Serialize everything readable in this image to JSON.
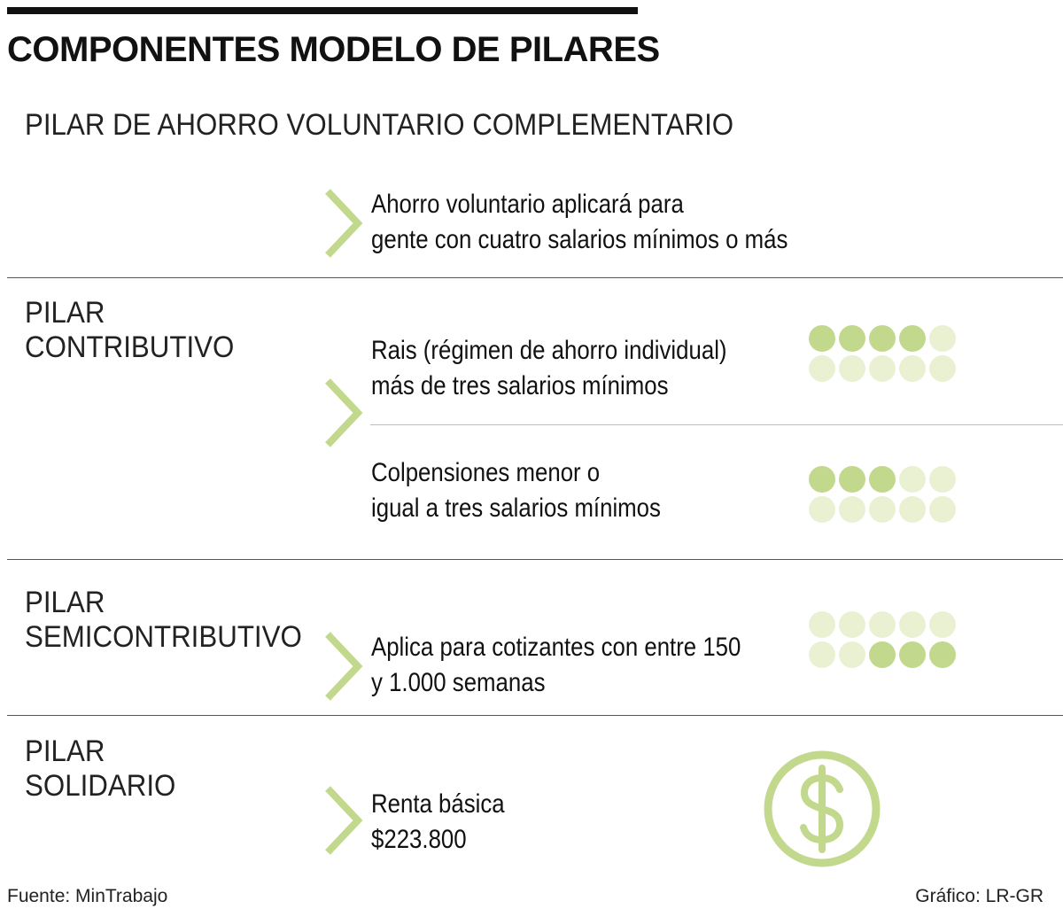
{
  "title": "COMPONENTES MODELO DE PILARES",
  "colors": {
    "accent": "#b6d17a",
    "dot_filled": "#c2d98d",
    "dot_empty": "#eaf1d2",
    "chevron": "#c2d98d"
  },
  "pillars": {
    "voluntario": {
      "label": "PILAR DE AHORRO VOLUNTARIO COMPLEMENTARIO",
      "desc_line1": "Ahorro voluntario aplicará para",
      "desc_line2": "gente con cuatro salarios mínimos o más"
    },
    "contributivo": {
      "label_line1": "PILAR",
      "label_line2": "CONTRIBUTIVO",
      "rais": {
        "line1": "Rais (régimen de ahorro individual)",
        "line2": "más de tres salarios mínimos",
        "dots_filled": 4,
        "dots_total": 10
      },
      "colpensiones": {
        "line1": "Colpensiones menor o",
        "line2": "igual a tres salarios mínimos",
        "dots_filled": 3,
        "dots_total": 10
      }
    },
    "semicontributivo": {
      "label_line1": "PILAR",
      "label_line2": "SEMICONTRIBUTIVO",
      "line1": "Aplica para cotizantes con entre 150",
      "line2": "y 1.000 semanas",
      "dots_filled": 3,
      "dots_total": 10
    },
    "solidario": {
      "label_line1": "PILAR",
      "label_line2": "SOLIDARIO",
      "line1": "Renta básica",
      "line2": "$223.800",
      "icon": "dollar-icon"
    }
  },
  "footer": {
    "source": "Fuente: MinTrabajo",
    "credit": "Gráfico: LR-GR"
  }
}
